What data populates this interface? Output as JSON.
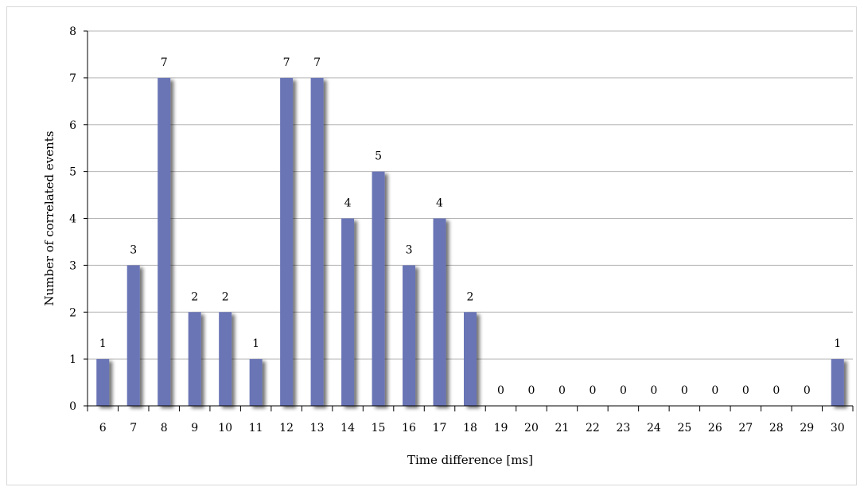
{
  "chart_data": {
    "type": "bar",
    "title": "",
    "xlabel": "Time difference [ms]",
    "ylabel": "Number of correlated events",
    "categories": [
      "6",
      "7",
      "8",
      "9",
      "10",
      "11",
      "12",
      "13",
      "14",
      "15",
      "16",
      "17",
      "18",
      "19",
      "20",
      "21",
      "22",
      "23",
      "24",
      "25",
      "26",
      "27",
      "28",
      "29",
      "30"
    ],
    "values": [
      1,
      3,
      7,
      2,
      2,
      1,
      7,
      7,
      4,
      5,
      3,
      4,
      2,
      0,
      0,
      0,
      0,
      0,
      0,
      0,
      0,
      0,
      0,
      0,
      1
    ],
    "ylim": [
      0,
      8
    ],
    "yticks": [
      "0",
      "1",
      "2",
      "3",
      "4",
      "5",
      "6",
      "7",
      "8"
    ],
    "grid": true,
    "legend": "none",
    "data_labels": true,
    "colors": {
      "bar": "#6b74b6",
      "grid": "#b5b5b5",
      "axis": "#000000",
      "frame": "#d9d9d9"
    }
  }
}
